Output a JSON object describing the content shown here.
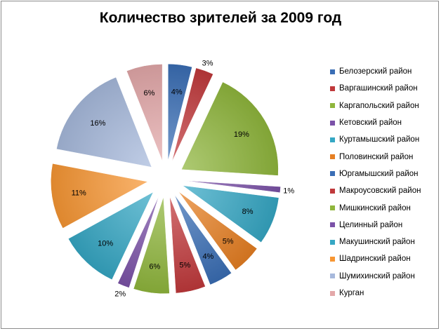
{
  "chart_data": {
    "type": "pie",
    "title": "Количество зрителей за 2009 год",
    "legend_position": "right",
    "exploded": true,
    "slices": [
      {
        "label": "Белозерский район",
        "value": 4,
        "display": "4%",
        "color": "#3a6eb5"
      },
      {
        "label": "Варгашинский район",
        "value": 3,
        "display": "3%",
        "color": "#c0393b"
      },
      {
        "label": "Каргапольский район",
        "value": 19,
        "display": "19%",
        "color": "#8fb63c"
      },
      {
        "label": "Кетовский район",
        "value": 1,
        "display": "1%",
        "color": "#7b52a8"
      },
      {
        "label": "Куртамышский район",
        "value": 8,
        "display": "8%",
        "color": "#35a7c4"
      },
      {
        "label": "Половинский район",
        "value": 5,
        "display": "5%",
        "color": "#e67f22"
      },
      {
        "label": "Юргамышский район",
        "value": 4,
        "display": "4%",
        "color": "#3a6eb5"
      },
      {
        "label": "Макроусовский район",
        "value": 5,
        "display": "5%",
        "color": "#c0393b"
      },
      {
        "label": "Мишкинский район",
        "value": 6,
        "display": "6%",
        "color": "#8fb63c"
      },
      {
        "label": "Целинный район",
        "value": 2,
        "display": "2%",
        "color": "#7b52a8"
      },
      {
        "label": "Макушинский район",
        "value": 10,
        "display": "10%",
        "color": "#35a7c4"
      },
      {
        "label": "Шадринский район",
        "value": 11,
        "display": "11%",
        "color": "#f79633"
      },
      {
        "label": "Шумихинский район",
        "value": 16,
        "display": "16%",
        "color": "#a7b9dc"
      },
      {
        "label": "Курган",
        "value": 6,
        "display": "6%",
        "color": "#e3a8a9"
      }
    ]
  }
}
